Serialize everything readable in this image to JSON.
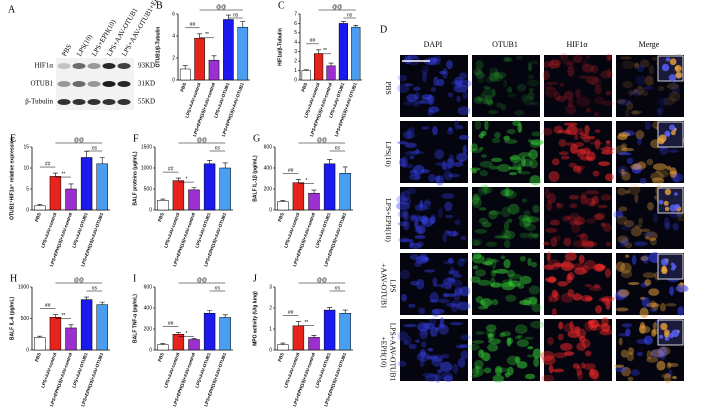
{
  "panels": {
    "A": {
      "label": "A",
      "lanes": [
        "PBS",
        "LPS(10)",
        "LPS+EPH(10)",
        "LPS+AAV-OTUB1",
        "LPS+AAV-OTUB1+EPH(10)"
      ],
      "proteins": [
        "HIF1α",
        "OTUB1",
        "β-Tubulin"
      ],
      "sizes": [
        "93KD",
        "31KD",
        "55KD"
      ]
    },
    "D": {
      "label": "D",
      "channels": [
        "DAPI",
        "OTUB1",
        "HIF1α",
        "Merge"
      ],
      "groups": [
        [
          "PBS"
        ],
        [
          "LPS(10)"
        ],
        [
          "LPS+EPH(10)"
        ],
        [
          "LPS",
          "+AAV-OTUB1"
        ],
        [
          "LPS+AAV-OTUB1",
          "+EPH(10)"
        ]
      ],
      "scale_bar": "100 μm"
    }
  },
  "chart_data": [
    {
      "type": "bar",
      "panel": "B",
      "y_label": "OTUB1/β-Tubulin",
      "categories": [
        "PBS",
        "LPS+AAV-control",
        "LPS+EPH(10)+AAV-control",
        "LPS+AAV-OTUB1",
        "LPS+EPH(10)+AAV-OTUB1"
      ],
      "values": [
        1.0,
        3.8,
        1.8,
        5.5,
        4.8
      ],
      "errors": [
        0.3,
        0.4,
        0.4,
        0.4,
        0.5
      ],
      "colors": [
        "#ffffff",
        "#e8231c",
        "#9b2fd0",
        "#1a1aee",
        "#4a9eef"
      ],
      "ylim": [
        0,
        6
      ],
      "yticks": [
        0,
        2,
        4,
        6
      ],
      "annotations": [
        "##",
        "**",
        "@@",
        "ns"
      ]
    },
    {
      "type": "bar",
      "panel": "C",
      "y_label": "HIF1α/β-Tubulin",
      "categories": [
        "PBS",
        "LPS+AAV-control",
        "LPS+EPH(10)+AAV-control",
        "LPS+AAV-OTUB1",
        "LPS+EPH(10)+AAV-OTUB1"
      ],
      "values": [
        1.0,
        2.8,
        1.5,
        6.0,
        5.6
      ],
      "errors": [
        0.1,
        0.4,
        0.3,
        0.2,
        0.2
      ],
      "colors": [
        "#ffffff",
        "#e8231c",
        "#9b2fd0",
        "#1a1aee",
        "#4a9eef"
      ],
      "ylim": [
        0,
        7
      ],
      "yticks": [
        0,
        1,
        2,
        3,
        4,
        5,
        6,
        7
      ],
      "annotations": [
        "##",
        "**",
        "@@",
        "ns"
      ]
    },
    {
      "type": "bar",
      "panel": "E",
      "y_label": "OTUB1⁺HIF1α⁺ relative expression",
      "categories": [
        "PBS",
        "LPS+AAV-control",
        "LPS+EPH(10)+AAV-control",
        "LPS+AAV-OTUB1",
        "LPS+EPH(10)+AAV-OTUB1"
      ],
      "values": [
        1,
        8,
        5,
        12.5,
        11
      ],
      "errors": [
        0.3,
        0.8,
        1.2,
        1.5,
        1.5
      ],
      "colors": [
        "#ffffff",
        "#e8231c",
        "#9b2fd0",
        "#1a1aee",
        "#4a9eef"
      ],
      "ylim": [
        0,
        15
      ],
      "yticks": [
        0,
        5,
        10,
        15
      ],
      "annotations": [
        "##",
        "**",
        "@@",
        "ns"
      ]
    },
    {
      "type": "bar",
      "panel": "F",
      "y_label": "BALF proteins (μg/mL)",
      "categories": [
        "PBS",
        "LPS+AAV-control",
        "LPS+EPH(10)+AAV-control",
        "LPS+AAV-OTUB1",
        "LPS+EPH(10)+AAV-OTUB1"
      ],
      "values": [
        230,
        700,
        480,
        1100,
        1000
      ],
      "errors": [
        30,
        60,
        50,
        80,
        120
      ],
      "colors": [
        "#ffffff",
        "#e8231c",
        "#9b2fd0",
        "#1a1aee",
        "#4a9eef"
      ],
      "ylim": [
        0,
        1500
      ],
      "yticks": [
        0,
        500,
        1000,
        1500
      ],
      "annotations": [
        "##",
        "*",
        "@@",
        "ns"
      ]
    },
    {
      "type": "bar",
      "panel": "G",
      "y_label": "BALF IL-1β (pg/mL)",
      "categories": [
        "PBS",
        "LPS+AAV-control",
        "LPS+EPH(10)+AAV-control",
        "LPS+AAV-OTUB1",
        "LPS+EPH(10)+AAV-OTUB1"
      ],
      "values": [
        80,
        260,
        160,
        440,
        350
      ],
      "errors": [
        10,
        30,
        30,
        40,
        60
      ],
      "colors": [
        "#ffffff",
        "#e8231c",
        "#9b2fd0",
        "#1a1aee",
        "#4a9eef"
      ],
      "ylim": [
        0,
        600
      ],
      "yticks": [
        0,
        200,
        400,
        600
      ],
      "annotations": [
        "##",
        "*",
        "@@",
        "ns"
      ]
    },
    {
      "type": "bar",
      "panel": "H",
      "y_label": "BALF IL-6 (pg/mL)",
      "categories": [
        "PBS",
        "LPS+AAV-control",
        "LPS+EPH(10)+AAV-control",
        "LPS+AAV-OTUB1",
        "LPS+EPH(10)+AAV-OTUB1"
      ],
      "values": [
        200,
        520,
        350,
        800,
        720
      ],
      "errors": [
        20,
        40,
        50,
        40,
        40
      ],
      "colors": [
        "#ffffff",
        "#e8231c",
        "#9b2fd0",
        "#1a1aee",
        "#4a9eef"
      ],
      "ylim": [
        0,
        1000
      ],
      "yticks": [
        0,
        500,
        1000
      ],
      "annotations": [
        "##",
        "**",
        "@@",
        "ns"
      ]
    },
    {
      "type": "bar",
      "panel": "I",
      "y_label": "BALF TNF-α (pg/mL)",
      "categories": [
        "PBS",
        "LPS+AAV-control",
        "LPS+EPH(10)+AAV-control",
        "LPS+AAV-OTUB1",
        "LPS+EPH(10)+AAV-OTUB1"
      ],
      "values": [
        50,
        150,
        100,
        350,
        310
      ],
      "errors": [
        10,
        15,
        10,
        25,
        25
      ],
      "colors": [
        "#ffffff",
        "#e8231c",
        "#9b2fd0",
        "#1a1aee",
        "#4a9eef"
      ],
      "ylim": [
        0,
        600
      ],
      "yticks": [
        0,
        200,
        400,
        600
      ],
      "annotations": [
        "##",
        "*",
        "@@",
        "ns"
      ]
    },
    {
      "type": "bar",
      "panel": "J",
      "y_label": "MPO activity (U/g lung)",
      "categories": [
        "PBS",
        "LPS+AAV-control",
        "LPS+EPH(10)+AAV-control",
        "LPS+AAV-OTUB1",
        "LPS+EPH(10)+AAV-OTUB1"
      ],
      "values": [
        0.25,
        1.15,
        0.6,
        1.9,
        1.75
      ],
      "errors": [
        0.08,
        0.2,
        0.1,
        0.12,
        0.15
      ],
      "colors": [
        "#ffffff",
        "#e8231c",
        "#9b2fd0",
        "#1a1aee",
        "#4a9eef"
      ],
      "ylim": [
        0,
        3
      ],
      "yticks": [
        0,
        1,
        2,
        3
      ],
      "annotations": [
        "##",
        "**",
        "@@",
        "ns"
      ]
    }
  ]
}
